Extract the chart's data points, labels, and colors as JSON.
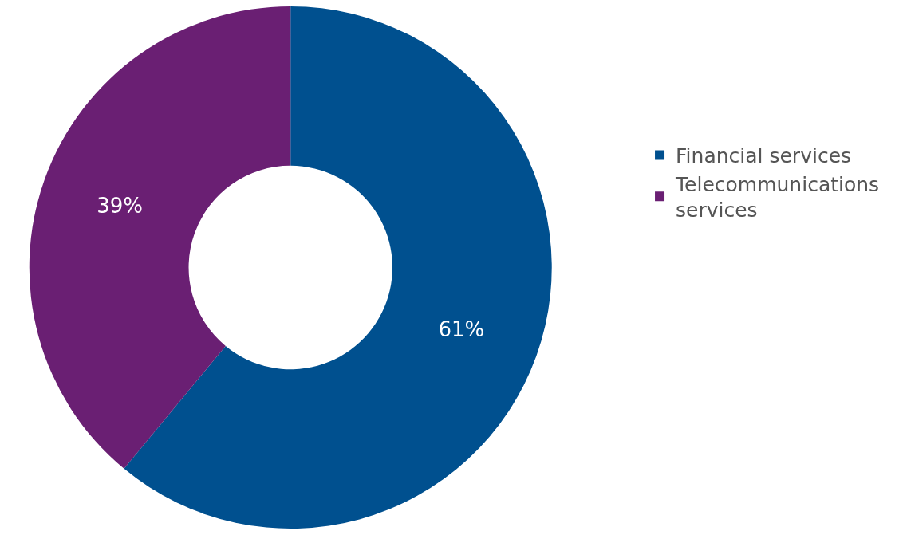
{
  "chart_data": {
    "type": "donut",
    "categories": [
      "Financial services",
      "Telecommunications services"
    ],
    "values": [
      61,
      39
    ],
    "colors": [
      "#00508f",
      "#6a1f73"
    ],
    "value_labels": [
      "61%",
      "39%"
    ],
    "legend": "right"
  }
}
